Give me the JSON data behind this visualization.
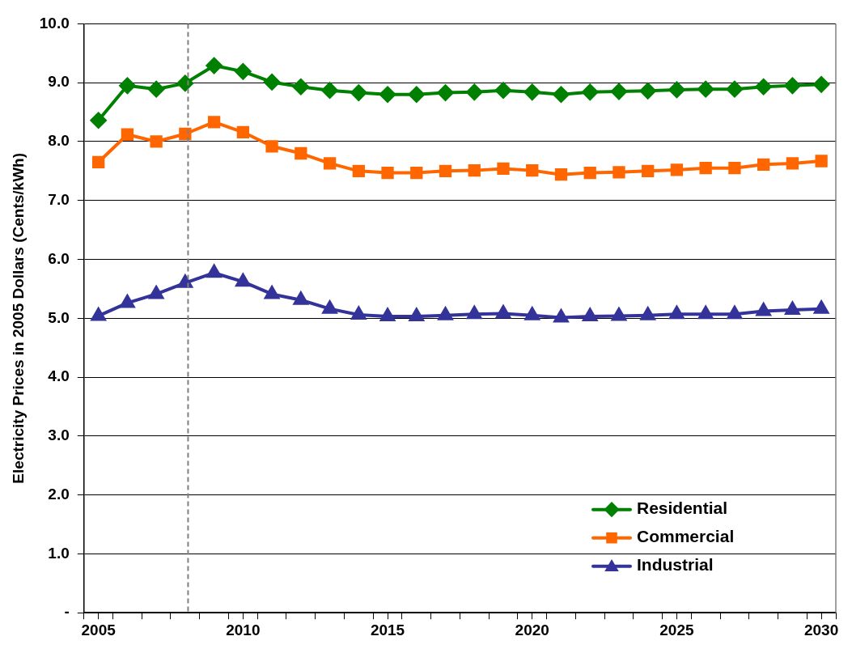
{
  "chart_data": {
    "type": "line",
    "ylabel": "Electricity Prices in 2005 Dollars (Cents/kWh)",
    "x": [
      2005,
      2006,
      2007,
      2008,
      2009,
      2010,
      2011,
      2012,
      2013,
      2014,
      2015,
      2016,
      2017,
      2018,
      2019,
      2020,
      2021,
      2022,
      2023,
      2024,
      2025,
      2026,
      2027,
      2028,
      2029,
      2030
    ],
    "series": [
      {
        "name": "Residential",
        "color": "#008000",
        "marker": "diamond",
        "values": [
          8.36,
          8.95,
          8.89,
          8.99,
          9.29,
          9.19,
          9.01,
          8.93,
          8.87,
          8.83,
          8.8,
          8.8,
          8.83,
          8.84,
          8.87,
          8.84,
          8.8,
          8.84,
          8.85,
          8.86,
          8.88,
          8.89,
          8.89,
          8.93,
          8.95,
          8.97
        ]
      },
      {
        "name": "Commercial",
        "color": "#ff6600",
        "marker": "square",
        "values": [
          7.65,
          8.12,
          8.0,
          8.13,
          8.33,
          8.16,
          7.92,
          7.8,
          7.63,
          7.5,
          7.47,
          7.47,
          7.5,
          7.51,
          7.54,
          7.51,
          7.44,
          7.47,
          7.48,
          7.5,
          7.52,
          7.55,
          7.55,
          7.61,
          7.63,
          7.67
        ]
      },
      {
        "name": "Industrial",
        "color": "#333399",
        "marker": "triangle",
        "values": [
          5.04,
          5.26,
          5.41,
          5.6,
          5.77,
          5.62,
          5.41,
          5.31,
          5.16,
          5.06,
          5.03,
          5.03,
          5.05,
          5.07,
          5.08,
          5.05,
          5.01,
          5.03,
          5.04,
          5.05,
          5.07,
          5.07,
          5.07,
          5.12,
          5.14,
          5.16
        ]
      }
    ],
    "xlim": [
      2004.5,
      2030.5
    ],
    "xticks": [
      2005,
      2010,
      2015,
      2020,
      2025,
      2030,
      {
        "value": 2004.5,
        "label": null
      },
      {
        "value": 2005.5,
        "label": null
      },
      {
        "value": 2006.5,
        "label": null
      },
      {
        "value": 2007.5,
        "label": null
      },
      {
        "value": 2008.5,
        "label": null
      },
      {
        "value": 2009.5,
        "label": null
      },
      {
        "value": 2010.5,
        "label": null
      },
      {
        "value": 2011.5,
        "label": null
      },
      {
        "value": 2012.5,
        "label": null
      },
      {
        "value": 2013.5,
        "label": null
      },
      {
        "value": 2014.5,
        "label": null
      },
      {
        "value": 2015.5,
        "label": null
      },
      {
        "value": 2016.5,
        "label": null
      },
      {
        "value": 2017.5,
        "label": null
      },
      {
        "value": 2018.5,
        "label": null
      },
      {
        "value": 2019.5,
        "label": null
      },
      {
        "value": 2020.5,
        "label": null
      },
      {
        "value": 2021.5,
        "label": null
      },
      {
        "value": 2022.5,
        "label": null
      },
      {
        "value": 2023.5,
        "label": null
      },
      {
        "value": 2024.5,
        "label": null
      },
      {
        "value": 2025.5,
        "label": null
      },
      {
        "value": 2026.5,
        "label": null
      },
      {
        "value": 2027.5,
        "label": null
      },
      {
        "value": 2028.5,
        "label": null
      },
      {
        "value": 2029.5,
        "label": null
      },
      {
        "value": 2030.5,
        "label": null
      }
    ],
    "ylim": [
      0,
      10
    ],
    "yticks": [
      {
        "value": 0,
        "label": "-"
      },
      {
        "value": 1,
        "label": "1.0"
      },
      {
        "value": 2,
        "label": "2.0"
      },
      {
        "value": 3,
        "label": "3.0"
      },
      {
        "value": 4,
        "label": "4.0"
      },
      {
        "value": 5,
        "label": "5.0"
      },
      {
        "value": 6,
        "label": "6.0"
      },
      {
        "value": 7,
        "label": "7.0"
      },
      {
        "value": 8,
        "label": "8.0"
      },
      {
        "value": 9,
        "label": "9.0"
      },
      {
        "value": 10,
        "label": "10.0"
      }
    ],
    "ref_lines": [
      {
        "axis": "x",
        "value": 2008.1,
        "color": "#808080",
        "line_style": "dashed"
      }
    ],
    "grid": "y",
    "legend": "bottom right",
    "line_style": "solid"
  }
}
